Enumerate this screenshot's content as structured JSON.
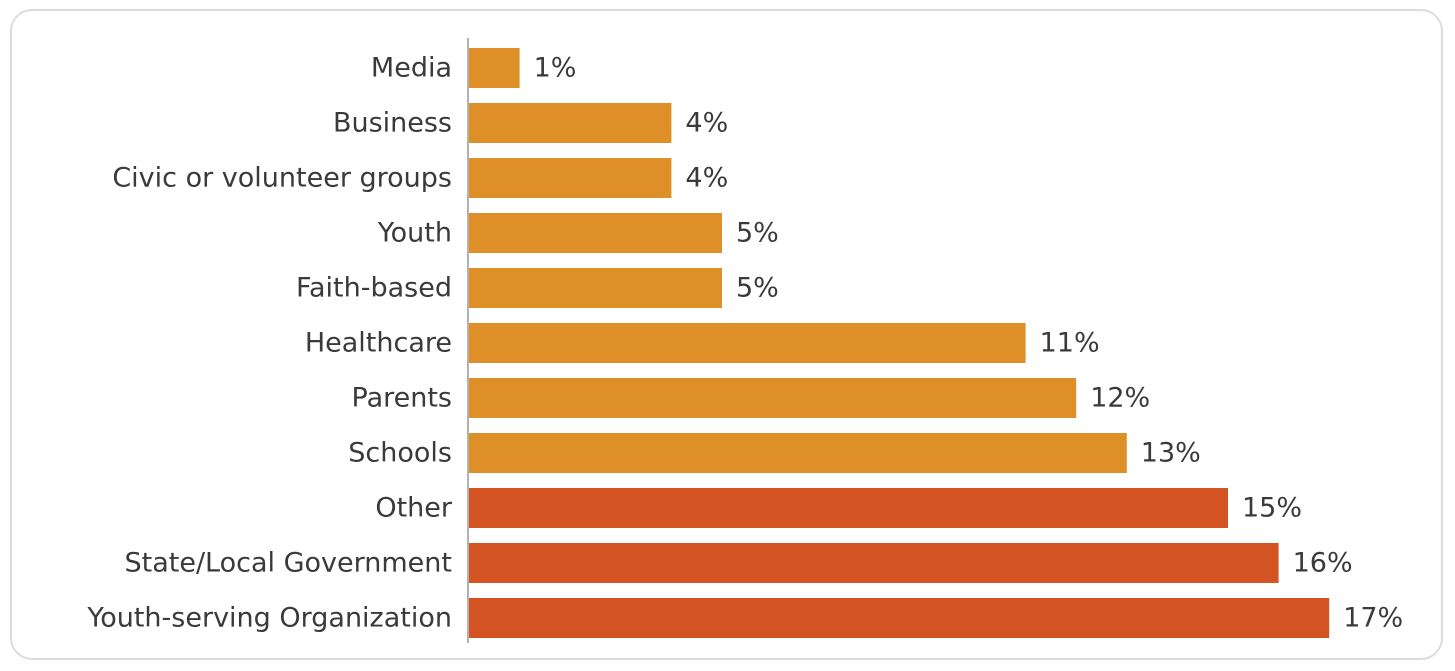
{
  "chart_data": {
    "type": "bar",
    "orientation": "horizontal",
    "categories": [
      "Media",
      "Business",
      "Civic or volunteer groups",
      "Youth",
      "Faith-based",
      "Healthcare",
      "Parents",
      "Schools",
      "Other",
      "State/Local Government",
      "Youth-serving Organization"
    ],
    "values": [
      1,
      4,
      4,
      5,
      5,
      11,
      12,
      13,
      15,
      16,
      17
    ],
    "value_labels": [
      "1%",
      "4%",
      "4%",
      "5%",
      "5%",
      "11%",
      "12%",
      "13%",
      "15%",
      "16%",
      "17%"
    ],
    "bar_colors": [
      "#de8f28",
      "#de8f28",
      "#de8f28",
      "#de8f28",
      "#de8f28",
      "#de8f28",
      "#de8f28",
      "#de8f28",
      "#d35322",
      "#d35322",
      "#d35322"
    ],
    "title": "",
    "xlabel": "",
    "ylabel": "",
    "xlim": [
      0,
      17
    ],
    "grid": false,
    "legend": "none"
  },
  "colors": {
    "text": "#3a3a3a",
    "axis": "#999999",
    "card_border": "#dcdcdc"
  }
}
